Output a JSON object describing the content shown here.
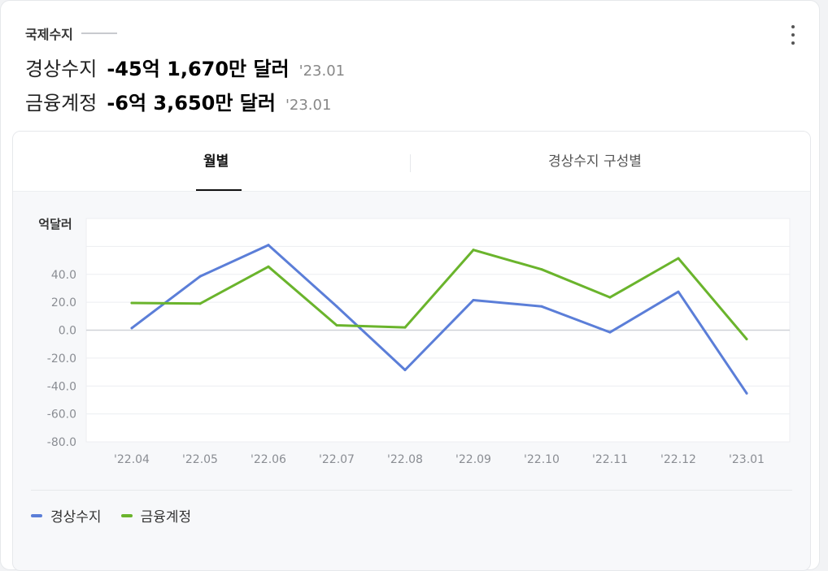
{
  "header": {
    "category": "국제수지",
    "rows": [
      {
        "label": "경상수지",
        "value": "-45억 1,670만 달러",
        "date": "'23.01"
      },
      {
        "label": "금융계정",
        "value": "-6억 3,650만 달러",
        "date": "'23.01"
      }
    ]
  },
  "tabs": [
    {
      "label": "월별",
      "active": true
    },
    {
      "label": "경상수지 구성별",
      "active": false
    }
  ],
  "colors": {
    "current_account": "#5b7ed8",
    "financial_account": "#6ab42c"
  },
  "chart_data": {
    "type": "line",
    "ylabel": "억달러",
    "xlabel": "",
    "categories": [
      "'22.04",
      "'22.05",
      "'22.06",
      "'22.07",
      "'22.08",
      "'22.09",
      "'22.10",
      "'22.11",
      "'22.12",
      "'23.01"
    ],
    "y_ticks": [
      "40.0",
      "20.0",
      "0.0",
      "-20.0",
      "-40.0",
      "-60.0",
      "-80.0"
    ],
    "ylim": [
      -80,
      80
    ],
    "grid": true,
    "legend_position": "bottom-left",
    "series": [
      {
        "name": "경상수지",
        "color": "#5b7ed8",
        "values": [
          1.5,
          38.5,
          61.0,
          17.0,
          -28.5,
          21.5,
          17.0,
          -1.5,
          27.5,
          -45.2
        ]
      },
      {
        "name": "금융계정",
        "color": "#6ab42c",
        "values": [
          19.5,
          19.0,
          45.5,
          3.5,
          2.0,
          57.5,
          43.5,
          23.5,
          51.5,
          -6.4
        ]
      }
    ]
  }
}
